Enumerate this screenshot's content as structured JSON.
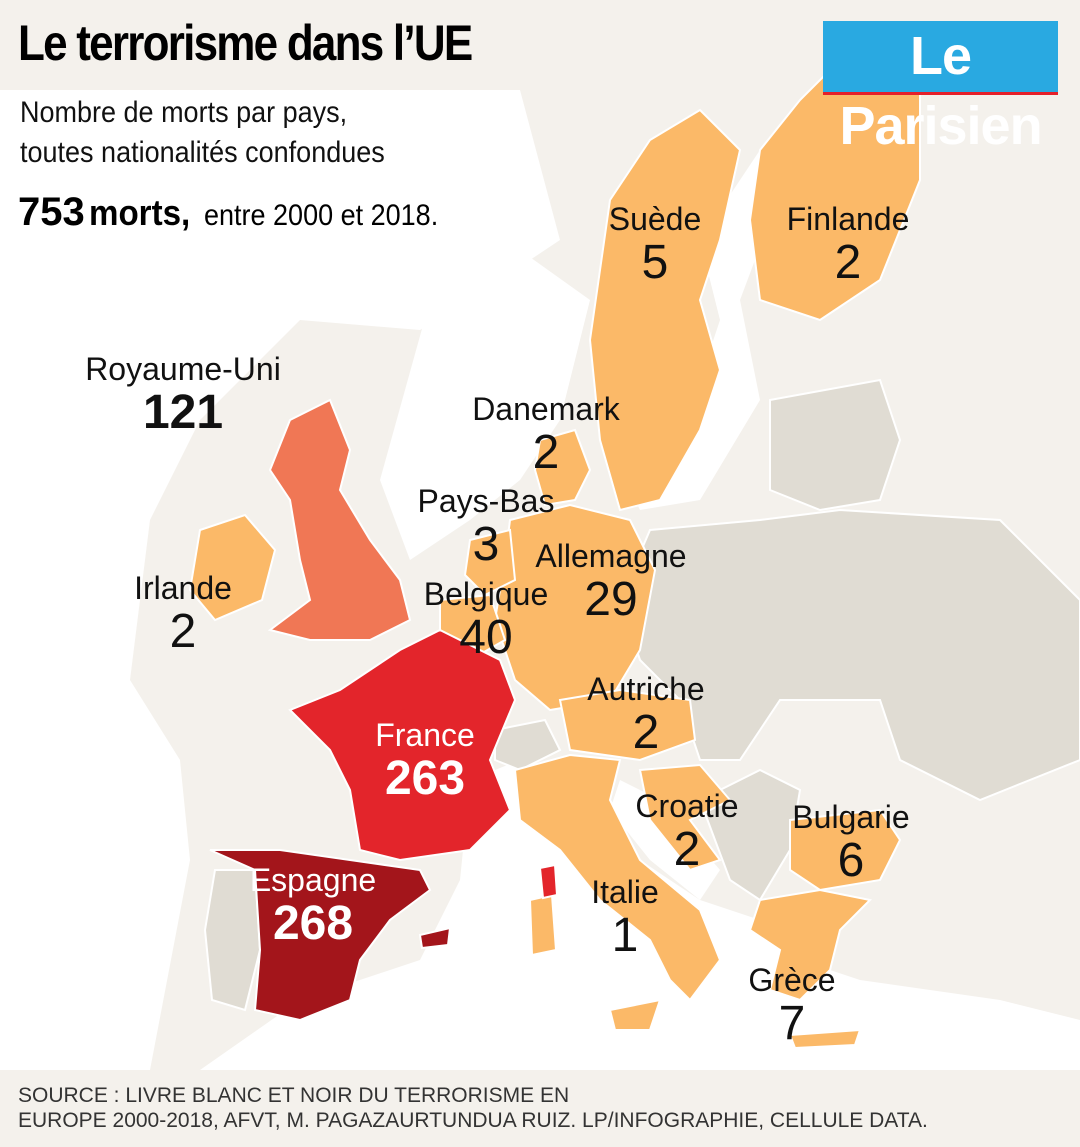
{
  "header": {
    "title": "Le terrorisme dans l’UE",
    "subtitle_line1": "Nombre de morts par pays,",
    "subtitle_line2": "toutes nationalités confondues",
    "total_number": "753",
    "total_word": "morts,",
    "total_period": " entre 2000 et 2018."
  },
  "logo": {
    "text": "Le Parisien"
  },
  "colors": {
    "sea": "#ffffff",
    "non_eu": "#f4f1ec",
    "eu_no_data": "#e0dcd3",
    "low": "#fbb968",
    "medium": "#f07755",
    "high": "#e3252b",
    "highest": "#a3151b"
  },
  "countries": [
    {
      "name": "Suède",
      "deaths": "5"
    },
    {
      "name": "Finlande",
      "deaths": "2"
    },
    {
      "name": "Royaume-Uni",
      "deaths": "121"
    },
    {
      "name": "Danemark",
      "deaths": "2"
    },
    {
      "name": "Pays-Bas",
      "deaths": "3"
    },
    {
      "name": "Allemagne",
      "deaths": "29"
    },
    {
      "name": "Irlande",
      "deaths": "2"
    },
    {
      "name": "Belgique",
      "deaths": "40"
    },
    {
      "name": "Autriche",
      "deaths": "2"
    },
    {
      "name": "France",
      "deaths": "263"
    },
    {
      "name": "Croatie",
      "deaths": "2"
    },
    {
      "name": "Bulgarie",
      "deaths": "6"
    },
    {
      "name": "Espagne",
      "deaths": "268"
    },
    {
      "name": "Italie",
      "deaths": "1"
    },
    {
      "name": "Grèce",
      "deaths": "7"
    }
  ],
  "source": {
    "line1": "SOURCE : LIVRE BLANC ET NOIR DU TERRORISME EN",
    "line2": "EUROPE 2000-2018, AFVT, M. PAGAZAURTUNDUA RUIZ. LP/INFOGRAPHIE, CELLULE DATA."
  }
}
